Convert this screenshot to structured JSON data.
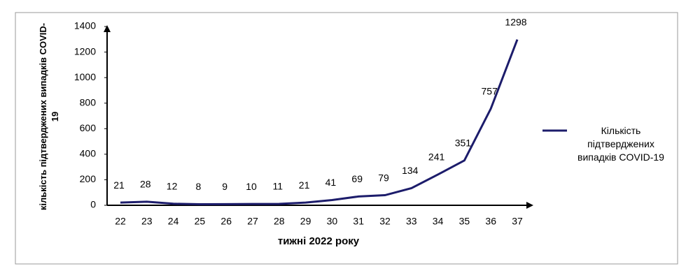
{
  "chart_data": {
    "type": "line",
    "x_label": "тижні 2022 року",
    "y_label": "кількість підтверджених випадків COVID-19",
    "categories": [
      "22",
      "23",
      "24",
      "25",
      "26",
      "27",
      "28",
      "29",
      "30",
      "31",
      "32",
      "33",
      "34",
      "35",
      "36",
      "37"
    ],
    "series": [
      {
        "name": "Кількість підтверджених випадків COVID-19",
        "color": "#1c1c6b",
        "values": [
          21,
          28,
          12,
          8,
          9,
          10,
          11,
          21,
          41,
          69,
          79,
          134,
          241,
          351,
          757,
          1298
        ]
      }
    ],
    "ylim": [
      0,
      1400
    ],
    "yticks": [
      0,
      200,
      400,
      600,
      800,
      1000,
      1200,
      1400
    ],
    "legend": "right"
  }
}
